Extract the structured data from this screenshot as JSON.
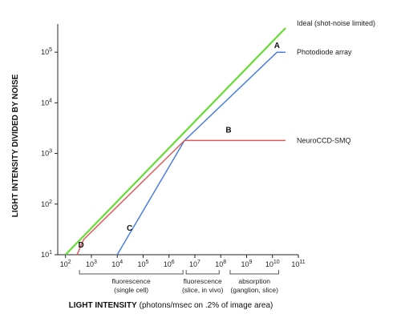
{
  "chart_data": {
    "type": "line",
    "xscale": "log",
    "yscale": "log",
    "xlim": [
      50,
      100000000000
    ],
    "ylim": [
      10,
      300000
    ],
    "xticks": [
      {
        "value": 100,
        "base": "10",
        "exp": "2"
      },
      {
        "value": 1000,
        "base": "10",
        "exp": "3"
      },
      {
        "value": 10000,
        "base": "10",
        "exp": "4"
      },
      {
        "value": 100000,
        "base": "10",
        "exp": "5"
      },
      {
        "value": 1000000,
        "base": "10",
        "exp": "6"
      },
      {
        "value": 10000000,
        "base": "10",
        "exp": "7"
      },
      {
        "value": 100000000,
        "base": "10",
        "exp": "8"
      },
      {
        "value": 1000000000,
        "base": "10",
        "exp": "9"
      },
      {
        "value": 10000000000,
        "base": "10",
        "exp": "10"
      },
      {
        "value": 100000000000,
        "base": "10",
        "exp": "11"
      }
    ],
    "yticks": [
      {
        "value": 10,
        "base": "10",
        "exp": "1"
      },
      {
        "value": 100,
        "base": "10",
        "exp": "2"
      },
      {
        "value": 1000,
        "base": "10",
        "exp": "3"
      },
      {
        "value": 10000,
        "base": "10",
        "exp": "4"
      },
      {
        "value": 100000,
        "base": "10",
        "exp": "5"
      }
    ],
    "xlabel": "LIGHT INTENSITY",
    "xlabel_units": "(photons/msec on .2% of image area)",
    "ylabel": "LIGHT INTENSITY DIVIDED BY NOISE",
    "series": [
      {
        "name": "Ideal (shot-noise limited)",
        "color": "#66dd33",
        "x": [
          100,
          100000000000
        ],
        "y": [
          10,
          300000
        ]
      },
      {
        "name": "Photodiode array",
        "color": "#4a7fe0",
        "x": [
          10000,
          4000000,
          15000000000,
          60000000000
        ],
        "y": [
          10,
          1800,
          100000,
          100000
        ]
      },
      {
        "name": "NeuroCCD-SMQ",
        "color": "#e05a5a",
        "x": [
          280,
          500,
          4000000,
          1500000000000
        ],
        "y": [
          10,
          20,
          1800,
          1800
        ]
      }
    ],
    "annotations": [
      {
        "text": "A",
        "x": 15000000000,
        "y": 120000
      },
      {
        "text": "B",
        "x": 200000000,
        "y": 2600
      },
      {
        "text": "C",
        "x": 30000,
        "y": 30
      },
      {
        "text": "D",
        "x": 400,
        "y": 14
      }
    ],
    "ranges": [
      {
        "lines": [
          "fluorescence",
          "(single cell)"
        ],
        "x_start": 300,
        "x_end": 4000000
      },
      {
        "lines": [
          "fluorescence",
          "(slice, in vivo)"
        ],
        "x_start": 4000000,
        "x_end": 100000000
      },
      {
        "lines": [
          "absorption",
          "(ganglion, slice)"
        ],
        "x_start": 200000000,
        "x_end": 20000000000
      }
    ]
  }
}
